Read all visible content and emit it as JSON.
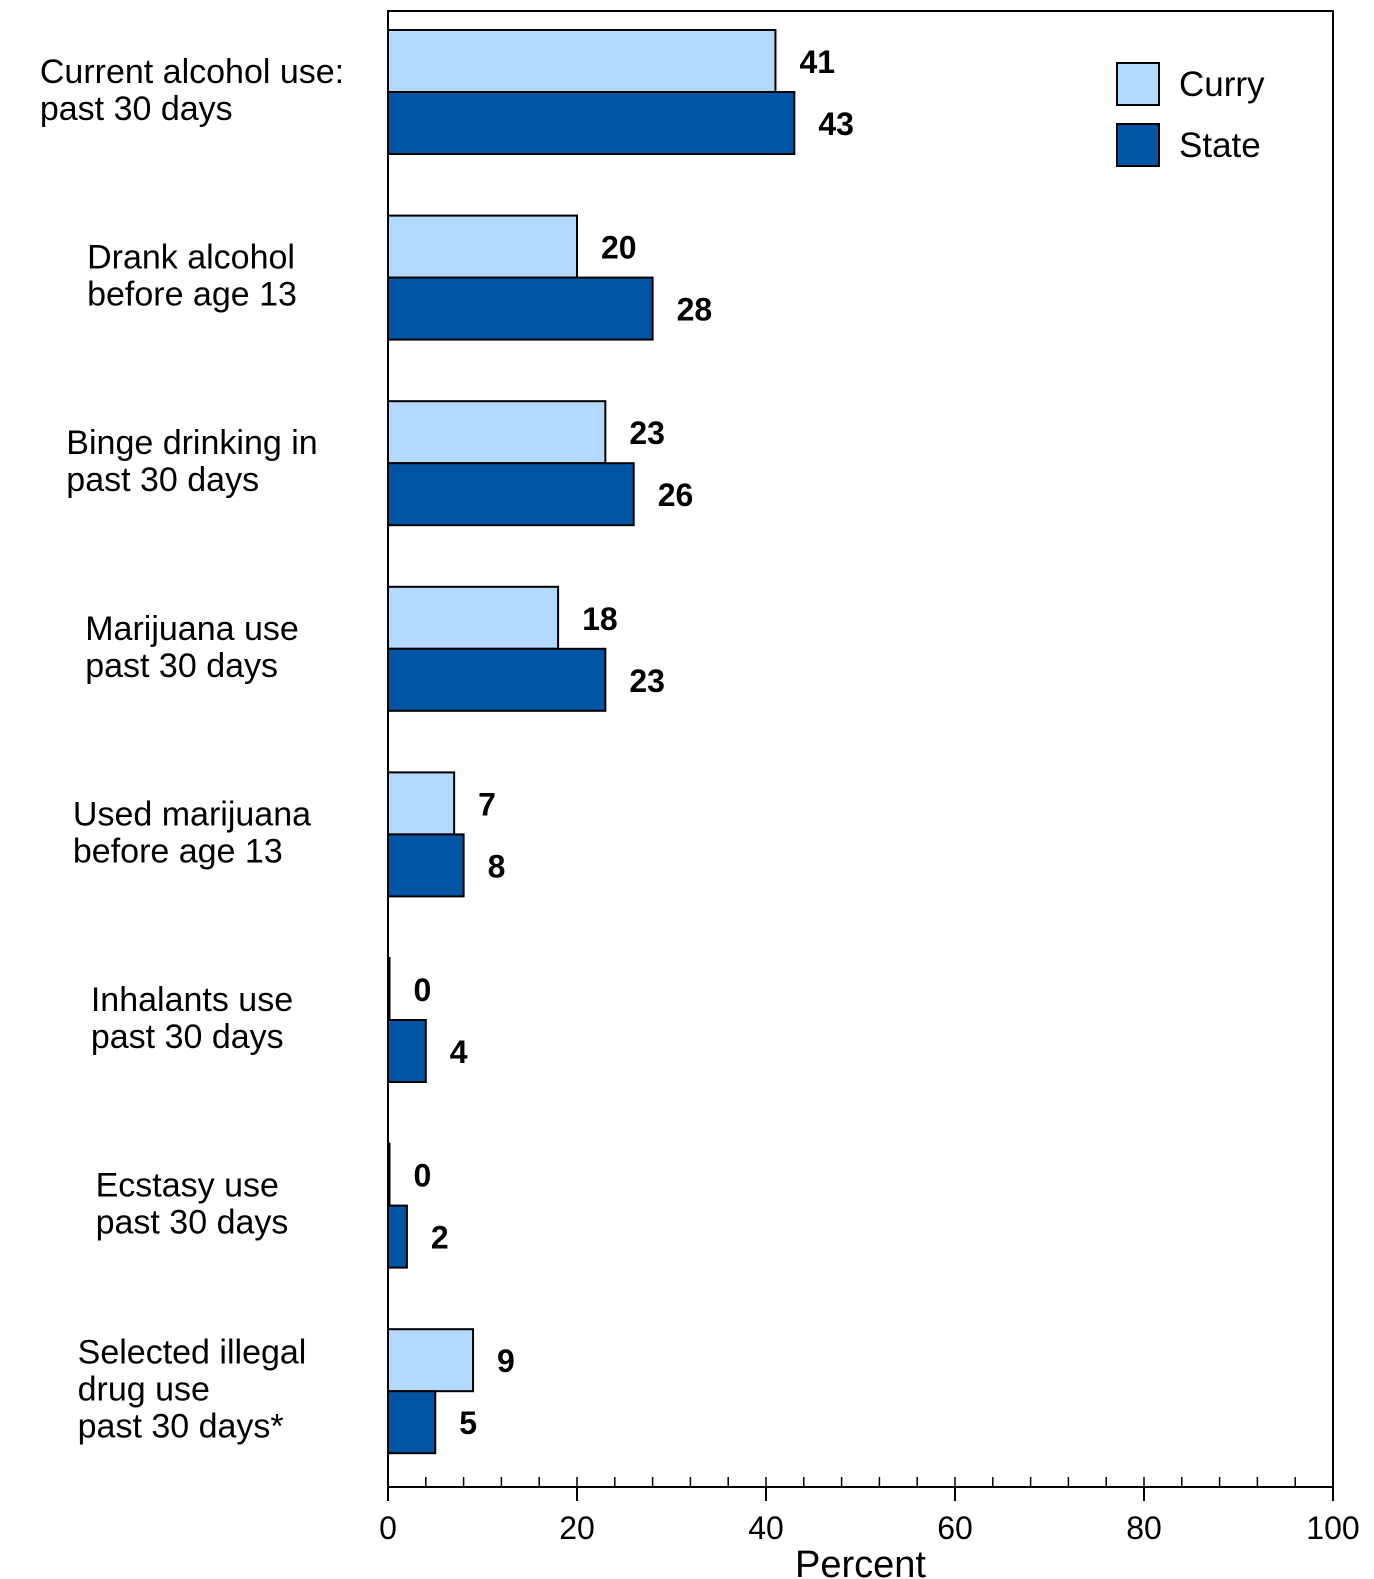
{
  "chart_data": {
    "type": "bar",
    "orientation": "horizontal",
    "categories": [
      [
        "Current alcohol use:",
        "past 30 days"
      ],
      [
        "Drank alcohol",
        "before age 13"
      ],
      [
        "Binge drinking in",
        "past 30 days"
      ],
      [
        "Marijuana use",
        "past 30 days"
      ],
      [
        "Used marijuana",
        "before age 13"
      ],
      [
        "Inhalants use",
        "past 30 days"
      ],
      [
        "Ecstasy use",
        "past 30 days"
      ],
      [
        "Selected illegal",
        "drug use",
        "past 30 days*"
      ]
    ],
    "series": [
      {
        "name": "Curry",
        "color": "#b3d9ff",
        "values": [
          41,
          20,
          23,
          18,
          7,
          0,
          0,
          9
        ]
      },
      {
        "name": "State",
        "color": "#0055a5",
        "values": [
          43,
          28,
          26,
          23,
          8,
          4,
          2,
          5
        ]
      }
    ],
    "xlabel": "Percent",
    "xlim": [
      0,
      100
    ],
    "xticks": [
      0,
      20,
      40,
      60,
      80,
      100
    ],
    "minor_tick_step": 4,
    "legend_position": "top-right",
    "grid": false
  }
}
